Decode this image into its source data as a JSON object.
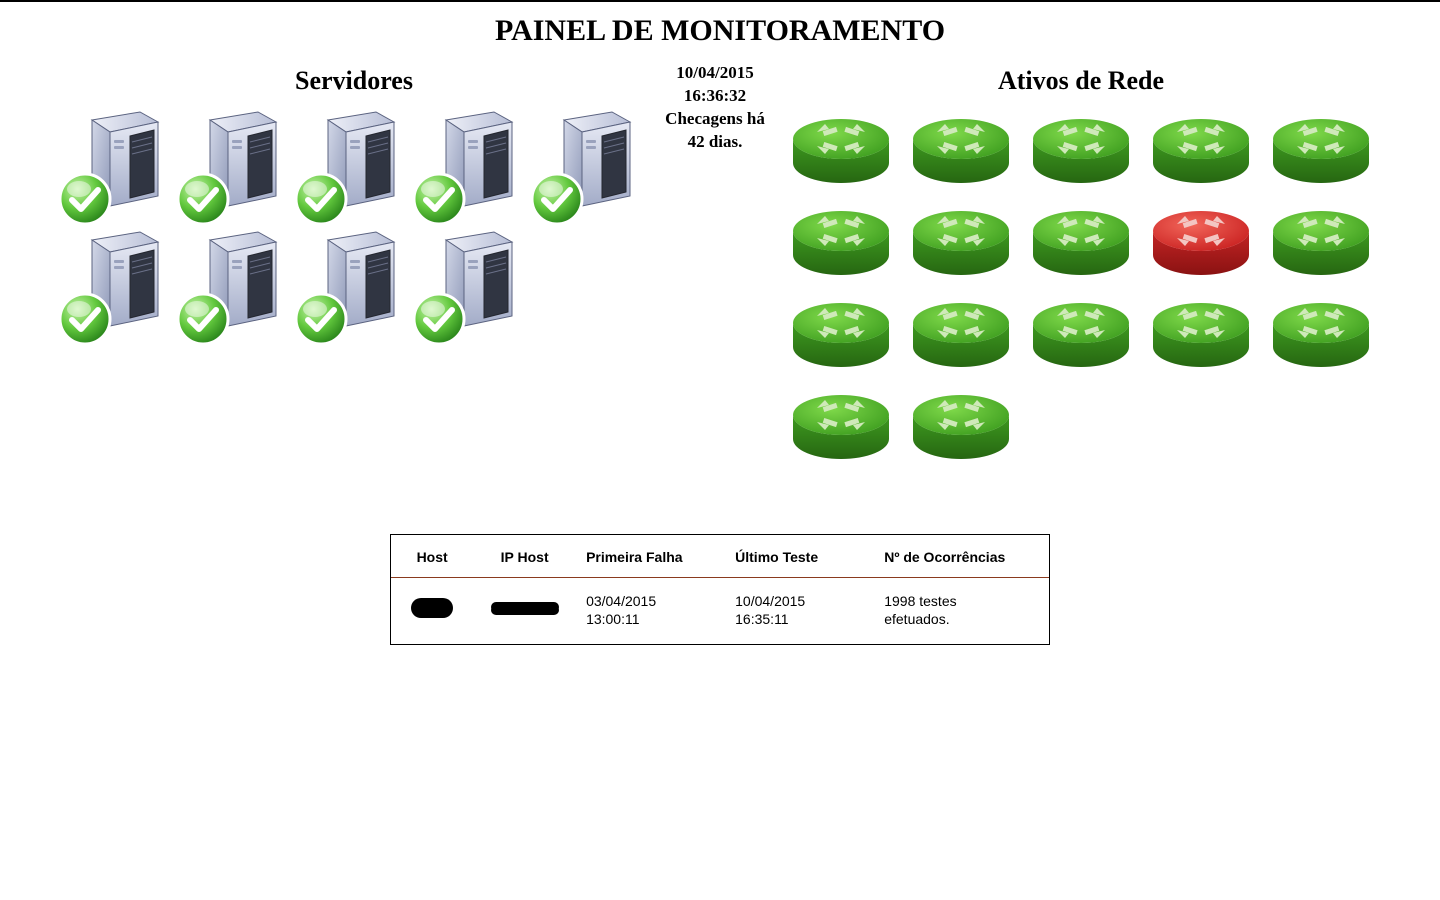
{
  "title": "PAINEL DE MONITORAMENTO",
  "timestamp": "10/04/2015 16:36:32",
  "check_age": "Checagens há 42 dias.",
  "colors": {
    "bg": "#ffffff",
    "text": "#000000",
    "server_body_light": "#d3d8e8",
    "server_body_dark": "#8f99b8",
    "server_front_light": "#e6e9f4",
    "server_front_dark": "#a3acc8",
    "server_panel": "#303542",
    "server_outline": "#5b6380",
    "check_green_light": "#9fe27a",
    "check_green_dark": "#3aa82a",
    "check_rim": "#ffffff",
    "router_green_top": "#6fcf3a",
    "router_green_top_dark": "#3c9c1e",
    "router_green_side": "#2c7a16",
    "router_red_top": "#ef4c3f",
    "router_red_top_dark": "#c81f1f",
    "router_red_side": "#a01616",
    "arrow": "#cfe9b9",
    "table_border": "#000000",
    "table_header_divider": "#8a3a1e"
  },
  "servers": {
    "title": "Servidores",
    "count": 9,
    "all_ok": true
  },
  "network": {
    "title": "Ativos de Rede",
    "items": [
      {
        "status": "ok"
      },
      {
        "status": "ok"
      },
      {
        "status": "ok"
      },
      {
        "status": "ok"
      },
      {
        "status": "ok"
      },
      {
        "status": "ok"
      },
      {
        "status": "ok"
      },
      {
        "status": "ok"
      },
      {
        "status": "fail"
      },
      {
        "status": "ok"
      },
      {
        "status": "ok"
      },
      {
        "status": "ok"
      },
      {
        "status": "ok"
      },
      {
        "status": "ok"
      },
      {
        "status": "ok"
      },
      {
        "status": "ok"
      },
      {
        "status": "ok"
      }
    ],
    "columns": 5
  },
  "failures_table": {
    "headers": [
      "Host",
      "IP Host",
      "Primeira Falha",
      "Último Teste",
      "Nº de Ocorrências"
    ],
    "rows": [
      {
        "host": "[redacted]",
        "ip": "[redacted]",
        "first_fail": "03/04/2015 13:00:11",
        "last_test": "10/04/2015 16:35:11",
        "occurrences": "1998 testes efetuados."
      }
    ]
  }
}
